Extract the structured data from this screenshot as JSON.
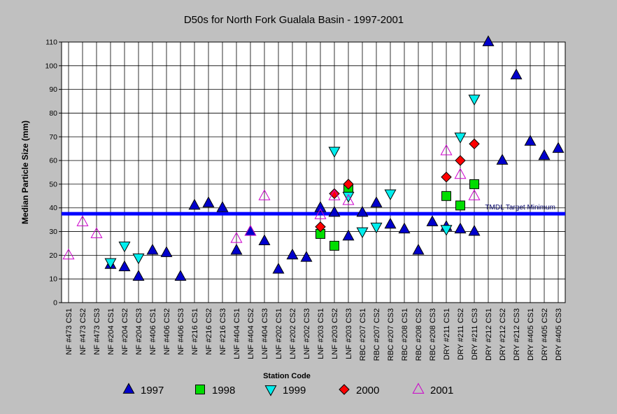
{
  "chart_data": {
    "type": "scatter",
    "title": "D50s for North Fork Gualala Basin - 1997-2001",
    "xlabel": "Station Code",
    "ylabel": "Median Particle Size (mm)",
    "ylim": [
      0,
      110
    ],
    "yticks": [
      0,
      10,
      20,
      30,
      40,
      50,
      60,
      70,
      80,
      90,
      100,
      110
    ],
    "grid": true,
    "legend_position": "bottom",
    "categories": [
      "NF #473 CS1",
      "NF #473 CS2",
      "NF #473 CS3",
      "NF #204 CS1",
      "NF #204 CS2",
      "NF #204 CS3",
      "NF #406 CS1",
      "NF #406 CS2",
      "NF #406 CS3",
      "NF #216 CS1",
      "NF #216 CS2",
      "NF #216 CS3",
      "LNF #404 CS1",
      "LNF #404 CS2",
      "LNF #404 CS3",
      "LNF #202 CS1",
      "LNF #202 CS2",
      "LNF #202 CS3",
      "LNF #203 CS1",
      "LNF #203 CS2",
      "LNF #203 CS3",
      "RBC #207 CS1",
      "RBC #207 CS2",
      "RBC #207 CS3",
      "RBC #208 CS1",
      "RBC #208 CS2",
      "RBC #208 CS3",
      "DRY #211 CS1",
      "DRY #211 CS2",
      "DRY #211 CS3",
      "DRY #212 CS1",
      "DRY #212 CS2",
      "DRY #212 CS3",
      "DRY #405 CS1",
      "DRY #405 CS2",
      "DRY #405 CS3"
    ],
    "series": [
      {
        "name": "1997",
        "marker": "triangle-up",
        "color": "#0000cc",
        "filled": true,
        "values": [
          null,
          null,
          null,
          16,
          15,
          11,
          22,
          21,
          11,
          41,
          42,
          40,
          22,
          30,
          26,
          14,
          20,
          19,
          40,
          38,
          28,
          38,
          42,
          33,
          31,
          22,
          34,
          32,
          31,
          30,
          110,
          60,
          96,
          68,
          62,
          65
        ]
      },
      {
        "name": "1998",
        "marker": "square",
        "color": "#00dd00",
        "filled": true,
        "values": [
          null,
          null,
          null,
          null,
          null,
          null,
          null,
          null,
          null,
          null,
          null,
          null,
          null,
          null,
          null,
          null,
          null,
          null,
          29,
          24,
          48,
          null,
          null,
          null,
          null,
          null,
          null,
          45,
          41,
          50,
          null,
          null,
          null,
          null,
          null,
          null
        ]
      },
      {
        "name": "1999",
        "marker": "triangle-down",
        "color": "#00eeee",
        "filled": true,
        "values": [
          null,
          null,
          null,
          17,
          24,
          19,
          null,
          null,
          null,
          null,
          null,
          null,
          null,
          null,
          null,
          null,
          null,
          null,
          null,
          64,
          45,
          30,
          32,
          46,
          null,
          null,
          null,
          31,
          70,
          86,
          null,
          null,
          null,
          null,
          null,
          null
        ]
      },
      {
        "name": "2000",
        "marker": "diamond",
        "color": "#ff0000",
        "filled": true,
        "values": [
          null,
          null,
          null,
          null,
          null,
          null,
          null,
          null,
          null,
          null,
          null,
          null,
          null,
          null,
          null,
          null,
          null,
          null,
          32,
          46,
          50,
          null,
          null,
          null,
          null,
          null,
          null,
          53,
          60,
          67,
          null,
          null,
          null,
          null,
          null,
          null
        ]
      },
      {
        "name": "2001",
        "marker": "triangle-up",
        "color": "#cc00cc",
        "filled": false,
        "values": [
          20,
          34,
          29,
          null,
          null,
          null,
          null,
          null,
          null,
          null,
          null,
          null,
          27,
          30,
          45,
          null,
          null,
          null,
          37,
          45,
          43,
          null,
          null,
          null,
          null,
          null,
          null,
          64,
          54,
          45,
          null,
          null,
          null,
          null,
          null,
          null
        ]
      }
    ],
    "reference_line": {
      "label": "TMDL Target Minimum",
      "value": 37.5,
      "color": "#0000ff"
    }
  }
}
